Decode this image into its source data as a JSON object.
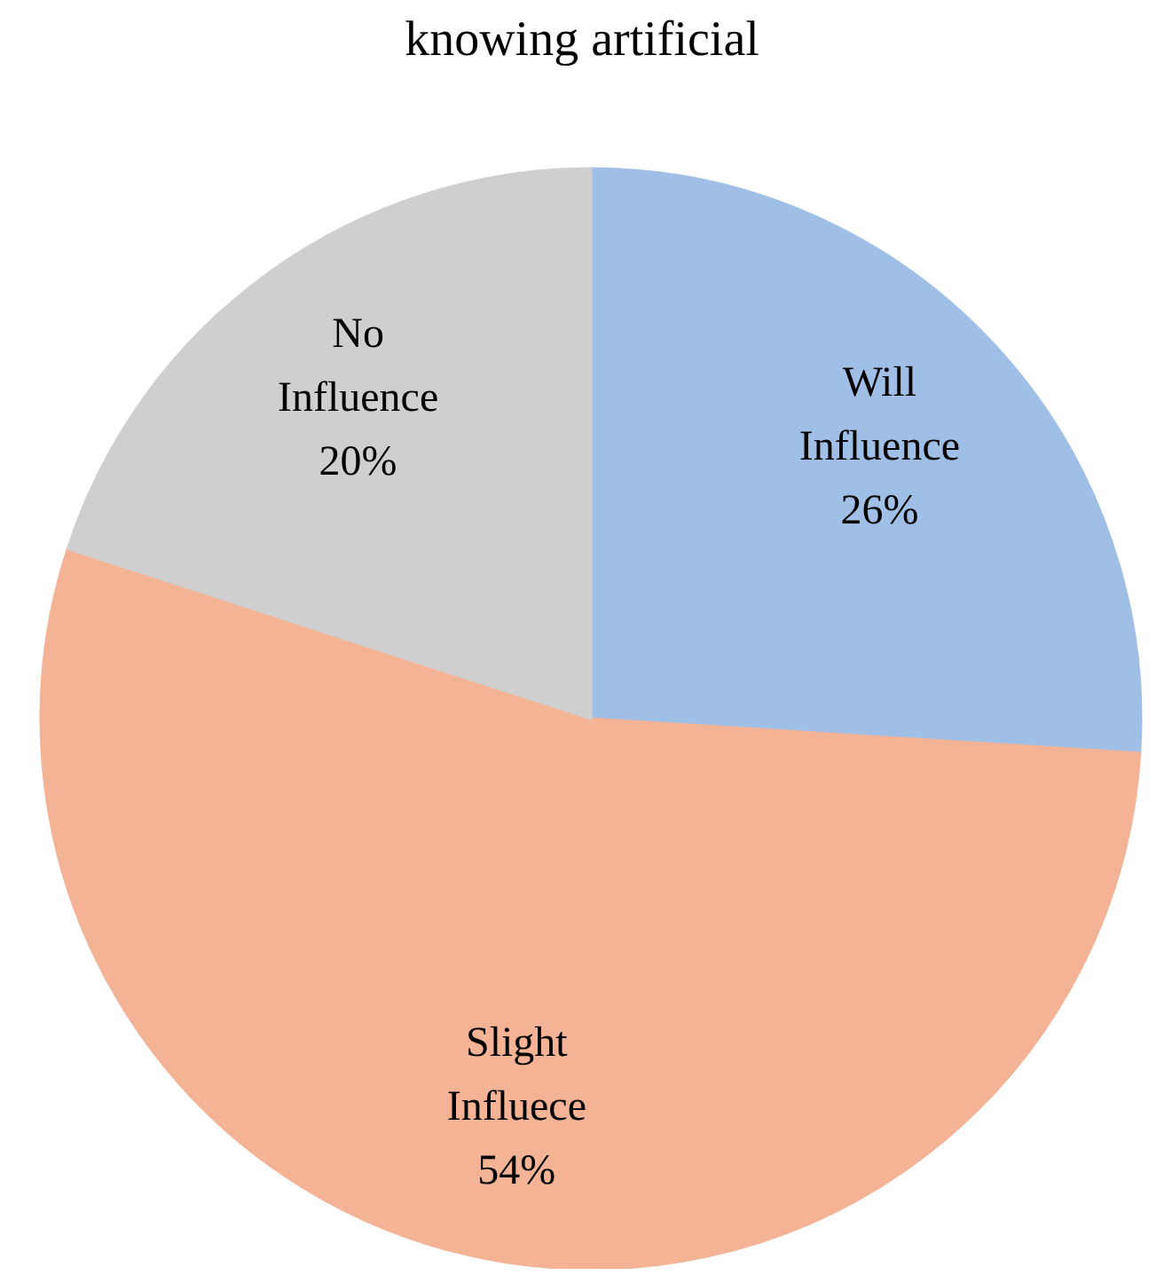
{
  "chart_data": {
    "type": "pie",
    "title": "knowing artificial",
    "categories": [
      "Will Influence",
      "Slight Influece",
      "No Influence"
    ],
    "values": [
      26,
      54,
      20
    ],
    "value_labels": [
      "26%",
      "54%",
      "20%"
    ],
    "colors": [
      "#a0bfe6",
      "#f5b396",
      "#cfcfcf"
    ],
    "legend": false
  }
}
